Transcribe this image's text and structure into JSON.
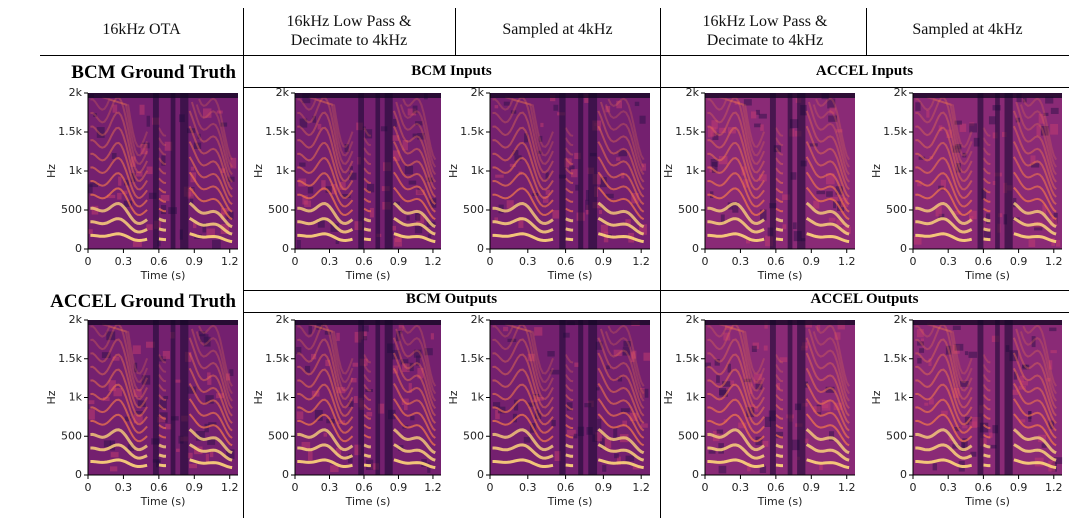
{
  "headers": {
    "columns": [
      "16kHz OTA",
      "16kHz Low Pass & Decimate to 4kHz",
      "Sampled at 4kHz",
      "16kHz Low Pass & Decimate to 4kHz",
      "Sampled at 4kHz"
    ]
  },
  "rows": [
    {
      "ground_truth": "BCM Ground Truth",
      "groups": [
        "BCM Inputs",
        "ACCEL Inputs"
      ]
    },
    {
      "ground_truth": "ACCEL Ground Truth",
      "groups": [
        "BCM Outputs",
        "ACCEL Outputs"
      ]
    }
  ],
  "chart_data": [
    {
      "type": "heatmap",
      "xlabel": "Time (s)",
      "ylabel": "Hz",
      "xlim": [
        0,
        1.27
      ],
      "ylim": [
        0,
        2000
      ],
      "xticks": [
        0,
        0.3,
        0.6,
        0.9,
        1.2
      ],
      "yticks": [
        0,
        500,
        {
          "value": 1000,
          "label": "1k"
        },
        {
          "value": 1500,
          "label": "1.5k"
        },
        {
          "value": 2000,
          "label": "2k"
        }
      ]
    },
    {
      "type": "heatmap",
      "xlabel": "Time (s)",
      "ylabel": "Hz",
      "xlim": [
        0,
        1.27
      ],
      "ylim": [
        0,
        2000
      ],
      "xticks": [
        0,
        0.3,
        0.6,
        0.9,
        1.2
      ],
      "yticks": [
        0,
        500,
        {
          "value": 1000,
          "label": "1k"
        },
        {
          "value": 1500,
          "label": "1.5k"
        },
        {
          "value": 2000,
          "label": "2k"
        }
      ]
    },
    {
      "type": "heatmap",
      "xlabel": "Time (s)",
      "ylabel": "Hz",
      "xlim": [
        0,
        1.27
      ],
      "ylim": [
        0,
        2000
      ],
      "xticks": [
        0,
        0.3,
        0.6,
        0.9,
        1.2
      ],
      "yticks": [
        0,
        500,
        {
          "value": 1000,
          "label": "1k"
        },
        {
          "value": 1500,
          "label": "1.5k"
        },
        {
          "value": 2000,
          "label": "2k"
        }
      ]
    },
    {
      "type": "heatmap",
      "xlabel": "Time (s)",
      "ylabel": "Hz",
      "xlim": [
        0,
        1.27
      ],
      "ylim": [
        0,
        2000
      ],
      "xticks": [
        0,
        0.3,
        0.6,
        0.9,
        1.2
      ],
      "yticks": [
        0,
        500,
        {
          "value": 1000,
          "label": "1k"
        },
        {
          "value": 1500,
          "label": "1.5k"
        },
        {
          "value": 2000,
          "label": "2k"
        }
      ]
    },
    {
      "type": "heatmap",
      "xlabel": "Time (s)",
      "ylabel": "Hz",
      "xlim": [
        0,
        1.27
      ],
      "ylim": [
        0,
        2000
      ],
      "xticks": [
        0,
        0.3,
        0.6,
        0.9,
        1.2
      ],
      "yticks": [
        0,
        500,
        {
          "value": 1000,
          "label": "1k"
        },
        {
          "value": 1500,
          "label": "1.5k"
        },
        {
          "value": 2000,
          "label": "2k"
        }
      ]
    },
    {
      "type": "heatmap",
      "xlabel": "Time (s)",
      "ylabel": "Hz",
      "xlim": [
        0,
        1.27
      ],
      "ylim": [
        0,
        2000
      ],
      "xticks": [
        0,
        0.3,
        0.6,
        0.9,
        1.2
      ],
      "yticks": [
        0,
        500,
        {
          "value": 1000,
          "label": "1k"
        },
        {
          "value": 1500,
          "label": "1.5k"
        },
        {
          "value": 2000,
          "label": "2k"
        }
      ]
    },
    {
      "type": "heatmap",
      "xlabel": "Time (s)",
      "ylabel": "Hz",
      "xlim": [
        0,
        1.27
      ],
      "ylim": [
        0,
        2000
      ],
      "xticks": [
        0,
        0.3,
        0.6,
        0.9,
        1.2
      ],
      "yticks": [
        0,
        500,
        {
          "value": 1000,
          "label": "1k"
        },
        {
          "value": 1500,
          "label": "1.5k"
        },
        {
          "value": 2000,
          "label": "2k"
        }
      ]
    },
    {
      "type": "heatmap",
      "xlabel": "Time (s)",
      "ylabel": "Hz",
      "xlim": [
        0,
        1.27
      ],
      "ylim": [
        0,
        2000
      ],
      "xticks": [
        0,
        0.3,
        0.6,
        0.9,
        1.2
      ],
      "yticks": [
        0,
        500,
        {
          "value": 1000,
          "label": "1k"
        },
        {
          "value": 1500,
          "label": "1.5k"
        },
        {
          "value": 2000,
          "label": "2k"
        }
      ]
    },
    {
      "type": "heatmap",
      "xlabel": "Time (s)",
      "ylabel": "Hz",
      "xlim": [
        0,
        1.27
      ],
      "ylim": [
        0,
        2000
      ],
      "xticks": [
        0,
        0.3,
        0.6,
        0.9,
        1.2
      ],
      "yticks": [
        0,
        500,
        {
          "value": 1000,
          "label": "1k"
        },
        {
          "value": 1500,
          "label": "1.5k"
        },
        {
          "value": 2000,
          "label": "2k"
        }
      ]
    },
    {
      "type": "heatmap",
      "xlabel": "Time (s)",
      "ylabel": "Hz",
      "xlim": [
        0,
        1.27
      ],
      "ylim": [
        0,
        2000
      ],
      "xticks": [
        0,
        0.3,
        0.6,
        0.9,
        1.2
      ],
      "yticks": [
        0,
        500,
        {
          "value": 1000,
          "label": "1k"
        },
        {
          "value": 1500,
          "label": "1.5k"
        },
        {
          "value": 2000,
          "label": "2k"
        }
      ]
    }
  ]
}
